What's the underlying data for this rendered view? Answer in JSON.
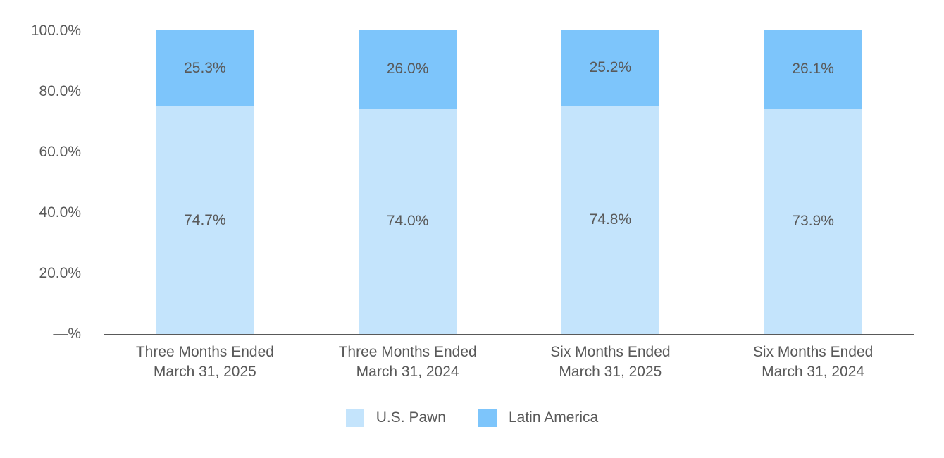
{
  "chart_data": {
    "type": "bar",
    "stacked": true,
    "orientation": "vertical",
    "title": "",
    "grid": false,
    "text_color": "#595959",
    "axis_line_color": "#595959",
    "categories": [
      {
        "line1": "Three Months Ended",
        "line2": "March 31, 2025"
      },
      {
        "line1": "Three Months Ended",
        "line2": "March 31, 2024"
      },
      {
        "line1": "Six Months Ended",
        "line2": "March 31, 2025"
      },
      {
        "line1": "Six Months Ended",
        "line2": "March 31, 2024"
      }
    ],
    "series": [
      {
        "name": "U.S. Pawn",
        "color": "#C4E4FC",
        "values": [
          74.7,
          74.0,
          74.8,
          73.9
        ],
        "labels": [
          "74.7%",
          "74.0%",
          "74.8%",
          "73.9%"
        ]
      },
      {
        "name": "Latin America",
        "color": "#7DC5FB",
        "values": [
          25.3,
          26.0,
          25.2,
          26.1
        ],
        "labels": [
          "25.3%",
          "26.0%",
          "25.2%",
          "26.1%"
        ]
      }
    ],
    "y_axis": {
      "min": 0,
      "max": 100,
      "tick_labels": [
        "100.0%",
        "80.0%",
        "60.0%",
        "40.0%",
        "20.0%",
        "—%"
      ]
    },
    "legend": {
      "position": "bottom",
      "items": [
        {
          "label": "U.S. Pawn",
          "color": "#C4E4FC"
        },
        {
          "label": "Latin America",
          "color": "#7DC5FB"
        }
      ]
    }
  }
}
